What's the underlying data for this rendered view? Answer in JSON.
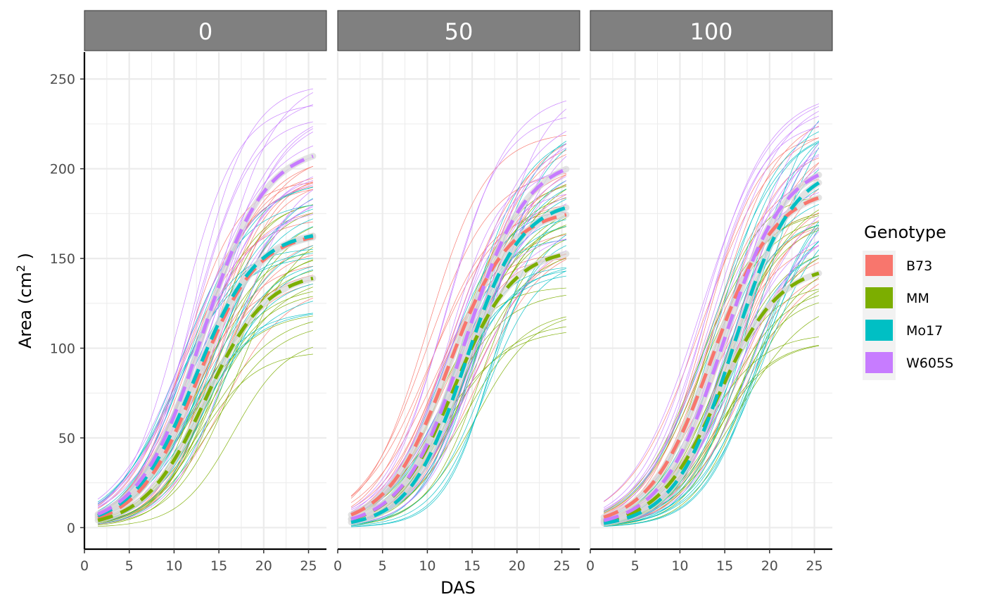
{
  "chart_data": {
    "type": "line",
    "xlabel": "DAS",
    "ylabel": "Area (cm",
    "ylabel_sup": "2",
    "ylabel_end": " )",
    "xlim": [
      0,
      27
    ],
    "ylim": [
      -12,
      265
    ],
    "x_ticks": [
      0,
      5,
      10,
      15,
      20,
      25
    ],
    "y_ticks": [
      0,
      50,
      100,
      150,
      200,
      250
    ],
    "facets": [
      "0",
      "50",
      "100"
    ],
    "legend": {
      "title": "Genotype",
      "position": "right",
      "entries": [
        "B73",
        "MM",
        "Mo17",
        "W605S"
      ]
    },
    "colors": {
      "B73": "#F8766D",
      "MM": "#7CAE00",
      "Mo17": "#00BFC4",
      "W605S": "#C77CFF",
      "strip_bg": "#808080",
      "grid": "#ebebeb",
      "mean_halo": "#d9d9d9"
    },
    "x_range": [
      1.5,
      25.5
    ],
    "mean_curves": [
      {
        "facet": "0",
        "genotype": "B73",
        "asym": 165,
        "mid": 12.6,
        "scale": 3.3
      },
      {
        "facet": "0",
        "genotype": "MM",
        "asym": 143,
        "mid": 13.5,
        "scale": 3.4
      },
      {
        "facet": "0",
        "genotype": "Mo17",
        "asym": 166,
        "mid": 12.3,
        "scale": 3.4
      },
      {
        "facet": "0",
        "genotype": "W605S",
        "asym": 213,
        "mid": 13.1,
        "scale": 3.5
      },
      {
        "facet": "50",
        "genotype": "B73",
        "asym": 178,
        "mid": 12.3,
        "scale": 3.4
      },
      {
        "facet": "50",
        "genotype": "MM",
        "asym": 156,
        "mid": 13.0,
        "scale": 3.3
      },
      {
        "facet": "50",
        "genotype": "Mo17",
        "asym": 183,
        "mid": 14.2,
        "scale": 3.1
      },
      {
        "facet": "50",
        "genotype": "W605S",
        "asym": 207,
        "mid": 14.2,
        "scale": 3.4
      },
      {
        "facet": "100",
        "genotype": "B73",
        "asym": 190,
        "mid": 13.6,
        "scale": 3.5
      },
      {
        "facet": "100",
        "genotype": "MM",
        "asym": 147,
        "mid": 14.3,
        "scale": 3.4
      },
      {
        "facet": "100",
        "genotype": "Mo17",
        "asym": 203,
        "mid": 16.0,
        "scale": 3.3
      },
      {
        "facet": "100",
        "genotype": "W605S",
        "asym": 205,
        "mid": 14.8,
        "scale": 3.4
      }
    ],
    "individual_curves_per_group": 18,
    "individual_spread": {
      "asym_range": [
        -45,
        45
      ],
      "mid_range": [
        -2.5,
        3.5
      ],
      "scale_range": [
        -0.5,
        0.6
      ]
    }
  }
}
